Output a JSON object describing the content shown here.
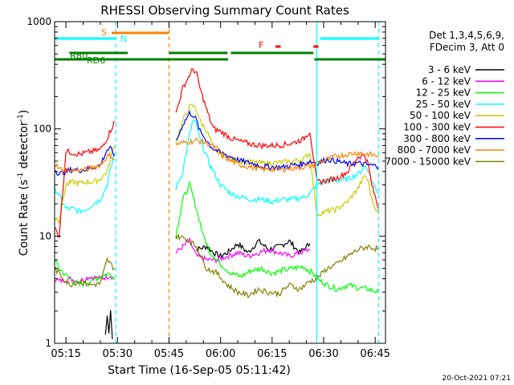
{
  "chart_data": {
    "type": "line",
    "title": "RHESSI Observing Summary Count Rates",
    "xlabel": "Start Time (16-Sep-05 05:11:42)",
    "ylabel_main": "Count Rate (s",
    "ylabel_sup1": "-1",
    "ylabel_mid": " detector",
    "ylabel_sup2": "-1",
    "ylabel_end": ")",
    "yscale": "log",
    "ylim": [
      1,
      1000
    ],
    "xlim": [
      311.7,
      408
    ],
    "x_ticks": [
      {
        "value": 315,
        "label": "05:15"
      },
      {
        "value": 330,
        "label": "05:30"
      },
      {
        "value": 345,
        "label": "05:45"
      },
      {
        "value": 360,
        "label": "06:00"
      },
      {
        "value": 375,
        "label": "06:15"
      },
      {
        "value": 390,
        "label": "06:30"
      },
      {
        "value": 405,
        "label": "06:45"
      }
    ],
    "y_ticks": [
      {
        "value": 1,
        "label": "1"
      },
      {
        "value": 10,
        "label": "10"
      },
      {
        "value": 100,
        "label": "100"
      },
      {
        "value": 1000,
        "label": "1000"
      }
    ],
    "legend_header": [
      "Det 1,3,4,5,6,9,",
      "FDecim 3, Att 0"
    ],
    "series": [
      {
        "name": "3 - 6 keV",
        "color": "#000000",
        "x": [
          326.5,
          327,
          327.5,
          328,
          328.5,
          353,
          356,
          358,
          360,
          362,
          365,
          368,
          371,
          374,
          377,
          380,
          383,
          386
        ],
        "values": [
          1.2,
          1.8,
          1.3,
          2.1,
          1.1,
          7.5,
          8,
          7,
          6.5,
          7,
          8.5,
          7,
          9,
          7.5,
          8,
          9,
          7,
          8.5
        ]
      },
      {
        "name": "6 - 12 keV",
        "color": "#ff00ff",
        "x": [
          311.7,
          313,
          316,
          319,
          322,
          325,
          328,
          329,
          347,
          349,
          351,
          353,
          356,
          359,
          362,
          365,
          368,
          371,
          374,
          377,
          380,
          383,
          386
        ],
        "values": [
          4,
          3.8,
          4,
          3.8,
          4.2,
          4,
          4.3,
          4,
          7,
          8,
          9,
          6.5,
          6,
          6,
          6.5,
          7,
          6.5,
          7,
          7.5,
          7,
          6.5,
          7,
          7.5
        ]
      },
      {
        "name": "12 - 25 keV",
        "color": "#00ff00",
        "x": [
          311.7,
          313,
          316,
          319,
          322,
          325,
          328,
          329,
          347,
          349,
          351,
          353,
          355,
          357,
          360,
          363,
          366,
          369,
          372,
          375,
          378,
          381,
          384,
          387,
          388,
          391,
          394,
          397,
          400,
          403,
          406
        ],
        "values": [
          6,
          5,
          4,
          3.5,
          3.8,
          4.2,
          4.5,
          4,
          10,
          22,
          30,
          18,
          10,
          7,
          5.5,
          4.5,
          4.2,
          4.8,
          5,
          4.5,
          4.8,
          5,
          5.2,
          4.5,
          4,
          3.5,
          3.2,
          3.5,
          3.3,
          3.2,
          3
        ]
      },
      {
        "name": "25 - 50 keV",
        "color": "#00ffff",
        "x": [
          311.7,
          313,
          315,
          317,
          319,
          321,
          323,
          325,
          327,
          329,
          347,
          349,
          351,
          352,
          353,
          354,
          356,
          357,
          358,
          360,
          363,
          366,
          369,
          372,
          375,
          378,
          381,
          384,
          386,
          388,
          391,
          394,
          397,
          400,
          402,
          403,
          404,
          406
        ],
        "values": [
          28,
          24,
          18,
          18,
          17,
          18,
          20,
          22,
          30,
          58,
          28,
          40,
          90,
          120,
          110,
          80,
          55,
          45,
          40,
          30,
          25,
          23,
          22,
          22,
          21,
          22,
          22,
          23,
          25,
          30,
          33,
          33,
          34,
          38,
          45,
          42,
          33,
          25
        ]
      },
      {
        "name": "50 - 100 keV",
        "color": "#cccc00",
        "x": [
          311.7,
          313,
          315,
          317,
          319,
          321,
          323,
          325,
          327,
          329,
          347,
          349,
          351,
          352,
          353,
          354,
          356,
          357,
          358,
          360,
          363,
          366,
          369,
          372,
          375,
          378,
          381,
          384,
          386,
          388,
          391,
          394,
          397,
          400,
          402,
          403,
          404,
          406
        ],
        "values": [
          15,
          14,
          30,
          32,
          31,
          32,
          32,
          34,
          40,
          70,
          75,
          120,
          160,
          165,
          150,
          120,
          95,
          80,
          65,
          58,
          52,
          50,
          49,
          48,
          48,
          49,
          50,
          52,
          60,
          16,
          17,
          18,
          21,
          28,
          37,
          32,
          22,
          16
        ]
      },
      {
        "name": "100 - 300 keV",
        "color": "#ff0000",
        "x": [
          311.7,
          313,
          315,
          317,
          319,
          321,
          323,
          325,
          327,
          329,
          347,
          349,
          351,
          352,
          353,
          354,
          356,
          357,
          358,
          360,
          363,
          366,
          369,
          372,
          375,
          378,
          381,
          384,
          386,
          388,
          391,
          394,
          397,
          400,
          402,
          403,
          404,
          406
        ],
        "values": [
          12,
          10,
          62,
          60,
          58,
          60,
          62,
          64,
          82,
          115,
          140,
          240,
          320,
          360,
          330,
          240,
          150,
          120,
          100,
          95,
          82,
          76,
          72,
          70,
          70,
          71,
          74,
          80,
          95,
          32,
          33,
          35,
          40,
          55,
          57,
          46,
          30,
          18
        ]
      },
      {
        "name": "300 - 800 keV",
        "color": "#0000ff",
        "x": [
          311.7,
          313,
          315,
          317,
          319,
          321,
          323,
          325,
          327,
          328,
          329,
          347,
          349,
          351,
          352,
          353,
          354,
          356,
          357,
          358,
          360,
          363,
          366,
          369,
          372,
          375,
          378,
          381,
          384,
          386,
          388,
          391,
          394,
          397,
          400,
          403,
          406
        ],
        "values": [
          42,
          38,
          40,
          42,
          41,
          42,
          44,
          46,
          64,
          65,
          58,
          75,
          110,
          140,
          135,
          120,
          95,
          78,
          70,
          65,
          60,
          55,
          50,
          48,
          45,
          44,
          44,
          46,
          47,
          50,
          48,
          52,
          50,
          47,
          48,
          46,
          45
        ]
      },
      {
        "name": "800 - 7000 keV",
        "color": "#ff8000",
        "x": [
          311.7,
          313,
          315,
          317,
          319,
          321,
          323,
          325,
          327,
          328,
          329,
          347,
          350,
          353,
          356,
          359,
          360,
          363,
          366,
          369,
          372,
          375,
          378,
          381,
          384,
          386,
          388,
          391,
          394,
          397,
          400,
          403,
          406
        ],
        "values": [
          48,
          42,
          42,
          41,
          41,
          42,
          44,
          46,
          55,
          57,
          52,
          72,
          75,
          78,
          74,
          65,
          58,
          50,
          46,
          44,
          42,
          42,
          42,
          43,
          44,
          45,
          48,
          52,
          56,
          58,
          60,
          58,
          56
        ]
      },
      {
        "name": "7000 - 15000 keV",
        "color": "#808000",
        "x": [
          311.7,
          313,
          316,
          319,
          322,
          325,
          327,
          329,
          347,
          350,
          353,
          356,
          359,
          362,
          365,
          368,
          371,
          374,
          377,
          380,
          383,
          386,
          388,
          391,
          394,
          397,
          400,
          403,
          406
        ],
        "values": [
          5,
          4.5,
          3.5,
          3.8,
          3.5,
          3.6,
          6,
          5,
          10,
          9.5,
          8,
          5,
          4.5,
          3.5,
          3,
          2.8,
          3.2,
          3,
          2.9,
          3.5,
          3.2,
          3.8,
          4,
          5,
          5.5,
          6.5,
          7.5,
          8,
          7.5
        ]
      }
    ],
    "annotations": {
      "s_label": "S",
      "n_label": "N",
      "f_label": "F",
      "rb_label": "RB0",
      "rd_label": "RD6"
    },
    "state_bars": [
      {
        "name": "saa",
        "color": "#ff8000",
        "segments": [
          [
            328.3,
            345
          ]
        ]
      },
      {
        "name": "night",
        "color": "#00ffff",
        "segments": [
          [
            311.7,
            329.5
          ],
          [
            389,
            406
          ]
        ]
      },
      {
        "name": "flare",
        "color": "#ff0000",
        "segments": [
          [
            376,
            377.5
          ],
          [
            387,
            388.5
          ]
        ]
      },
      {
        "name": "rb0",
        "color": "#008000",
        "segments": [
          [
            316,
            333
          ],
          [
            345,
            362
          ],
          [
            363,
            387
          ]
        ]
      },
      {
        "name": "rd6",
        "color": "#008000",
        "segments": [
          [
            311.7,
            345
          ],
          [
            345,
            362.2
          ],
          [
            387.3,
            408
          ]
        ]
      }
    ],
    "vlines": [
      {
        "x": 329.5,
        "color": "#00ffff",
        "style": "dashed"
      },
      {
        "x": 345,
        "color": "#ff8000",
        "style": "dashed"
      },
      {
        "x": 388,
        "color": "#00ffff",
        "style": "solid"
      },
      {
        "x": 406,
        "color": "#00ffff",
        "style": "dashed"
      }
    ]
  },
  "footer": {
    "timestamp": "20-Oct-2021 07:21"
  }
}
